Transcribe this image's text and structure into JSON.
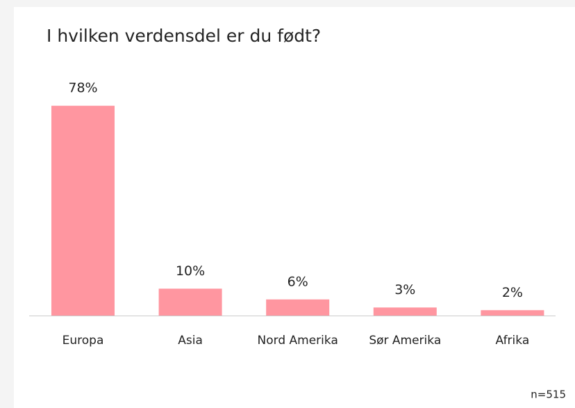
{
  "chart_data": {
    "type": "bar",
    "title": "I hvilken verdensdel er du født?",
    "categories": [
      "Europa",
      "Asia",
      "Nord Amerika",
      "Sør Amerika",
      "Afrika"
    ],
    "values": [
      78,
      10,
      6,
      3,
      2
    ],
    "value_labels": [
      "78%",
      "10%",
      "6%",
      "3%",
      "2%"
    ],
    "color": "#ff96a0",
    "annotation": "n=515"
  }
}
